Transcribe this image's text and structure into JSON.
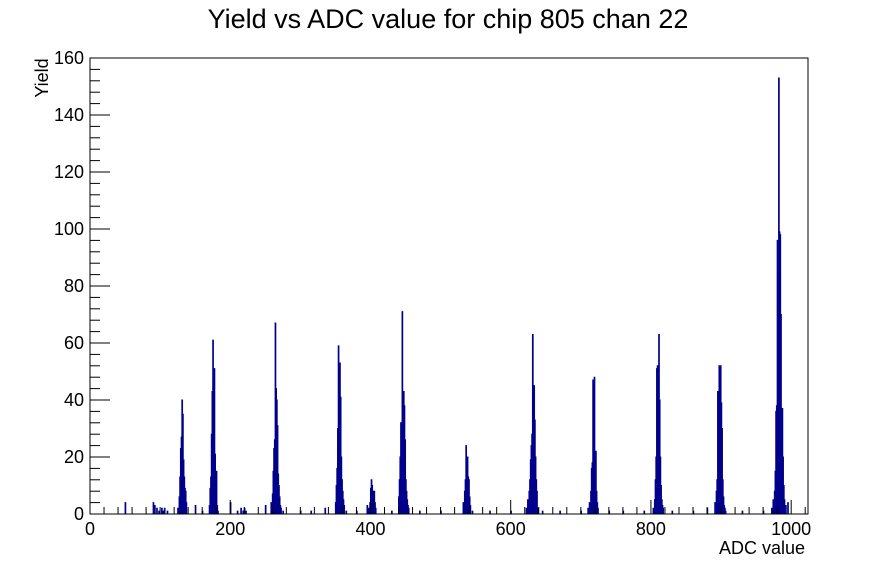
{
  "chart_data": {
    "type": "bar",
    "title": "Yield vs ADC value for chip 805 chan 22",
    "xlabel": "ADC value",
    "ylabel": "Yield",
    "xlim": [
      0,
      1024
    ],
    "ylim": [
      0,
      160
    ],
    "x_ticks": [
      0,
      200,
      400,
      600,
      800,
      1000
    ],
    "y_ticks": [
      0,
      20,
      40,
      60,
      80,
      100,
      120,
      140,
      160
    ],
    "grid": false,
    "legend": "none",
    "line_color": "#00008b",
    "x": [
      50,
      90,
      92,
      95,
      98,
      102,
      104,
      106,
      110,
      125,
      127,
      128,
      129,
      130,
      131,
      132,
      133,
      134,
      135,
      136,
      137,
      150,
      160,
      170,
      171,
      172,
      173,
      174,
      175,
      176,
      177,
      178,
      179,
      180,
      181,
      182,
      200,
      210,
      215,
      218,
      220,
      222,
      250,
      258,
      260,
      261,
      262,
      263,
      264,
      265,
      266,
      267,
      268,
      269,
      270,
      271,
      272,
      275,
      300,
      315,
      335,
      350,
      351,
      352,
      353,
      354,
      355,
      356,
      357,
      358,
      359,
      360,
      361,
      362,
      365,
      380,
      395,
      397,
      399,
      400,
      401,
      402,
      403,
      404,
      405,
      406,
      407,
      430,
      440,
      441,
      442,
      443,
      444,
      445,
      446,
      447,
      448,
      449,
      450,
      451,
      452,
      453,
      454,
      470,
      500,
      532,
      534,
      535,
      536,
      537,
      538,
      539,
      540,
      541,
      542,
      545,
      570,
      600,
      622,
      624,
      626,
      627,
      628,
      629,
      630,
      631,
      632,
      633,
      634,
      635,
      636,
      637,
      638,
      645,
      670,
      700,
      710,
      712,
      714,
      715,
      716,
      717,
      718,
      719,
      720,
      721,
      722,
      723,
      724,
      740,
      760,
      790,
      803,
      805,
      806,
      807,
      808,
      809,
      810,
      811,
      812,
      813,
      814,
      815,
      816,
      817,
      830,
      860,
      880,
      891,
      893,
      894,
      895,
      896,
      897,
      898,
      899,
      900,
      901,
      902,
      903,
      904,
      905,
      906,
      930,
      960,
      972,
      974,
      976,
      977,
      978,
      979,
      980,
      981,
      982,
      983,
      984,
      985,
      986,
      987,
      988,
      989,
      990,
      992,
      995
    ],
    "values": [
      4,
      4,
      3,
      2,
      1,
      2,
      1,
      2,
      1,
      2,
      6,
      13,
      23,
      27,
      40,
      35,
      19,
      13,
      9,
      8,
      4,
      3,
      1,
      3,
      9,
      13,
      28,
      43,
      61,
      47,
      51,
      21,
      10,
      15,
      3,
      1,
      4,
      1,
      2,
      1,
      2,
      1,
      3,
      4,
      7,
      15,
      23,
      26,
      67,
      44,
      40,
      31,
      14,
      10,
      6,
      3,
      2,
      1,
      1,
      1,
      2,
      4,
      10,
      16,
      30,
      59,
      52,
      53,
      41,
      20,
      12,
      8,
      5,
      3,
      1,
      1,
      3,
      2,
      4,
      9,
      12,
      10,
      8,
      7,
      8,
      4,
      2,
      1,
      6,
      12,
      20,
      32,
      25,
      71,
      42,
      43,
      38,
      26,
      12,
      8,
      5,
      3,
      2,
      1,
      1,
      4,
      8,
      12,
      24,
      19,
      20,
      13,
      12,
      6,
      3,
      1,
      1,
      1,
      2,
      5,
      8,
      12,
      19,
      24,
      28,
      63,
      45,
      45,
      33,
      20,
      12,
      8,
      2,
      1,
      1,
      1,
      2,
      4,
      8,
      16,
      18,
      47,
      45,
      48,
      20,
      22,
      8,
      4,
      2,
      1,
      1,
      1,
      2,
      5,
      12,
      20,
      51,
      52,
      48,
      63,
      40,
      20,
      10,
      5,
      3,
      2,
      1,
      1,
      2,
      4,
      8,
      12,
      43,
      42,
      52,
      48,
      52,
      39,
      30,
      12,
      6,
      3,
      2,
      1,
      1,
      1,
      2,
      5,
      8,
      15,
      36,
      38,
      96,
      84,
      153,
      99,
      98,
      70,
      25,
      37,
      20,
      10,
      5,
      3,
      4
    ]
  }
}
